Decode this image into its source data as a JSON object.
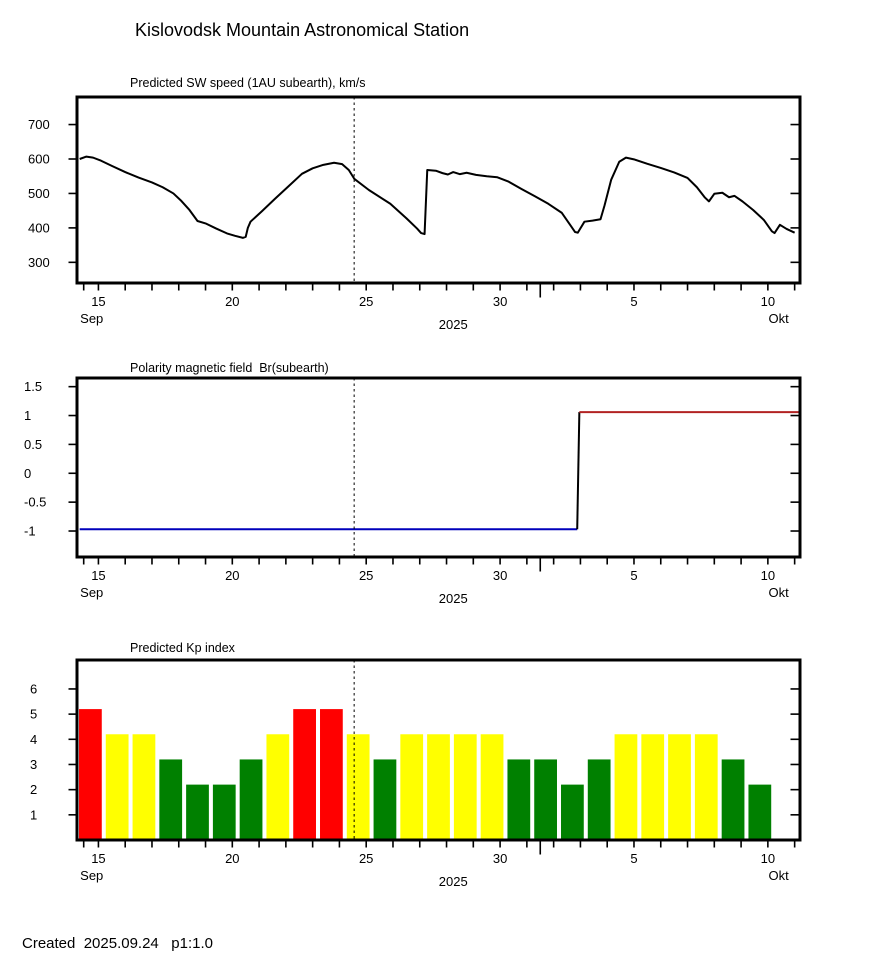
{
  "page_title": "Kislovodsk Mountain Astronomical Station",
  "footer": {
    "created_label": "Created  2025.09.24   p1:1.0"
  },
  "x_axis": {
    "unit": "day of September 2025 (October dates = day - 30)",
    "xlim": [
      14.2,
      41.2
    ],
    "tick_day_first": 15,
    "tick_day_last": 41,
    "corner_tick_day": 14.45,
    "month_boundary_tick_day": 31.5,
    "labels": [
      {
        "day": 15,
        "text": "15"
      },
      {
        "day": 20,
        "text": "20"
      },
      {
        "day": 25,
        "text": "25"
      },
      {
        "day": 30,
        "text": "30"
      },
      {
        "day": 35,
        "text": "5"
      },
      {
        "day": 40,
        "text": "10"
      }
    ],
    "month_left": "Sep",
    "month_right": "Okt",
    "year_label": "2025",
    "month_left_day": 14.75,
    "month_right_day": 40.4,
    "year_day": 28.25,
    "forecast_divider_day": 24.55
  },
  "chart_data": [
    {
      "id": "sw_speed",
      "type": "line",
      "title": "Predicted SW speed (1AU subearth), km/s",
      "ylim": [
        240,
        780
      ],
      "yticks": [
        700,
        600,
        500,
        400,
        300
      ],
      "line_color": "#000000",
      "points": [
        [
          14.3,
          600
        ],
        [
          14.55,
          607
        ],
        [
          14.8,
          604
        ],
        [
          15.1,
          595
        ],
        [
          15.5,
          580
        ],
        [
          16,
          562
        ],
        [
          16.5,
          546
        ],
        [
          17,
          532
        ],
        [
          17.4,
          518
        ],
        [
          17.8,
          500
        ],
        [
          18.1,
          478
        ],
        [
          18.4,
          452
        ],
        [
          18.7,
          420
        ],
        [
          19,
          413
        ],
        [
          19.4,
          398
        ],
        [
          19.8,
          384
        ],
        [
          20.1,
          377
        ],
        [
          20.4,
          371
        ],
        [
          20.5,
          374
        ],
        [
          20.58,
          400
        ],
        [
          20.68,
          418
        ],
        [
          21.1,
          448
        ],
        [
          21.6,
          485
        ],
        [
          22.1,
          521
        ],
        [
          22.6,
          557
        ],
        [
          23,
          573
        ],
        [
          23.4,
          583
        ],
        [
          23.8,
          589
        ],
        [
          24.1,
          585
        ],
        [
          24.35,
          568
        ],
        [
          24.56,
          542
        ],
        [
          25.1,
          510
        ],
        [
          25.9,
          470
        ],
        [
          26.5,
          428
        ],
        [
          26.9,
          398
        ],
        [
          27.05,
          385
        ],
        [
          27.18,
          382
        ],
        [
          27.28,
          568
        ],
        [
          27.6,
          566
        ],
        [
          27.85,
          559
        ],
        [
          28.05,
          555
        ],
        [
          28.25,
          562
        ],
        [
          28.5,
          556
        ],
        [
          28.75,
          560
        ],
        [
          29.1,
          554
        ],
        [
          29.5,
          550
        ],
        [
          29.9,
          547
        ],
        [
          30.3,
          535
        ],
        [
          30.8,
          513
        ],
        [
          31.3,
          492
        ],
        [
          31.8,
          470
        ],
        [
          32.3,
          444
        ],
        [
          32.65,
          405
        ],
        [
          32.8,
          388
        ],
        [
          32.9,
          386
        ],
        [
          33.15,
          418
        ],
        [
          33.45,
          421
        ],
        [
          33.75,
          425
        ],
        [
          33.9,
          465
        ],
        [
          34.15,
          540
        ],
        [
          34.45,
          592
        ],
        [
          34.7,
          604
        ],
        [
          35,
          599
        ],
        [
          35.5,
          586
        ],
        [
          36,
          574
        ],
        [
          36.5,
          561
        ],
        [
          37,
          545
        ],
        [
          37.35,
          518
        ],
        [
          37.65,
          488
        ],
        [
          37.8,
          477
        ],
        [
          38,
          499
        ],
        [
          38.3,
          502
        ],
        [
          38.55,
          489
        ],
        [
          38.75,
          493
        ],
        [
          39.05,
          477
        ],
        [
          39.45,
          452
        ],
        [
          39.85,
          423
        ],
        [
          40.15,
          390
        ],
        [
          40.25,
          385
        ],
        [
          40.45,
          409
        ],
        [
          40.7,
          397
        ],
        [
          41,
          386
        ]
      ]
    },
    {
      "id": "polarity",
      "type": "step-line",
      "title": "Polarity magnetic field  Br(subearth)",
      "ylim": [
        -1.45,
        1.65
      ],
      "yticks": [
        1.5,
        1,
        0.5,
        0,
        -0.5,
        -1
      ],
      "segments": [
        {
          "name": "negative-polarity-line",
          "color": "#0000bb",
          "points": [
            [
              14.3,
              -0.97
            ],
            [
              32.88,
              -0.97
            ]
          ]
        },
        {
          "name": "polarity-transition-line",
          "color": "#000000",
          "points": [
            [
              32.88,
              -0.97
            ],
            [
              32.96,
              1.06
            ]
          ]
        },
        {
          "name": "positive-polarity-line",
          "color": "#b22222",
          "points": [
            [
              32.96,
              1.06
            ],
            [
              41.2,
              1.06
            ]
          ]
        }
      ]
    },
    {
      "id": "kp_index",
      "type": "bar",
      "title": "Predicted Kp index",
      "ylim": [
        0,
        7.15
      ],
      "yticks": [
        6,
        5,
        4,
        3,
        2,
        1
      ],
      "bar_width_days": 0.85,
      "bar_center_offset_days": -0.3,
      "color_scale": {
        "red": "#ff0000",
        "yellow": "#ffff00",
        "green": "#008000"
      },
      "bars": [
        {
          "date": "Sep 15",
          "day": 15,
          "value": 5.2,
          "color": "red"
        },
        {
          "date": "Sep 16",
          "day": 16,
          "value": 4.2,
          "color": "yellow"
        },
        {
          "date": "Sep 17",
          "day": 17,
          "value": 4.2,
          "color": "yellow"
        },
        {
          "date": "Sep 18",
          "day": 18,
          "value": 3.2,
          "color": "green"
        },
        {
          "date": "Sep 19",
          "day": 19,
          "value": 2.2,
          "color": "green"
        },
        {
          "date": "Sep 20",
          "day": 20,
          "value": 2.2,
          "color": "green"
        },
        {
          "date": "Sep 21",
          "day": 21,
          "value": 3.2,
          "color": "green"
        },
        {
          "date": "Sep 22",
          "day": 22,
          "value": 4.2,
          "color": "yellow"
        },
        {
          "date": "Sep 23",
          "day": 23,
          "value": 5.2,
          "color": "red"
        },
        {
          "date": "Sep 24",
          "day": 24,
          "value": 5.2,
          "color": "red"
        },
        {
          "date": "Sep 25",
          "day": 25,
          "value": 4.2,
          "color": "yellow"
        },
        {
          "date": "Sep 26",
          "day": 26,
          "value": 3.2,
          "color": "green"
        },
        {
          "date": "Sep 27",
          "day": 27,
          "value": 4.2,
          "color": "yellow"
        },
        {
          "date": "Sep 28",
          "day": 28,
          "value": 4.2,
          "color": "yellow"
        },
        {
          "date": "Sep 29",
          "day": 29,
          "value": 4.2,
          "color": "yellow"
        },
        {
          "date": "Sep 30",
          "day": 30,
          "value": 4.2,
          "color": "yellow"
        },
        {
          "date": "Oct 1",
          "day": 31,
          "value": 3.2,
          "color": "green"
        },
        {
          "date": "Oct 2",
          "day": 32,
          "value": 3.2,
          "color": "green"
        },
        {
          "date": "Oct 3",
          "day": 33,
          "value": 2.2,
          "color": "green"
        },
        {
          "date": "Oct 4",
          "day": 34,
          "value": 3.2,
          "color": "green"
        },
        {
          "date": "Oct 5",
          "day": 35,
          "value": 4.2,
          "color": "yellow"
        },
        {
          "date": "Oct 6",
          "day": 36,
          "value": 4.2,
          "color": "yellow"
        },
        {
          "date": "Oct 7",
          "day": 37,
          "value": 4.2,
          "color": "yellow"
        },
        {
          "date": "Oct 8",
          "day": 38,
          "value": 4.2,
          "color": "yellow"
        },
        {
          "date": "Oct 9",
          "day": 39,
          "value": 3.2,
          "color": "green"
        },
        {
          "date": "Oct 10",
          "day": 40,
          "value": 2.2,
          "color": "green"
        }
      ]
    }
  ]
}
